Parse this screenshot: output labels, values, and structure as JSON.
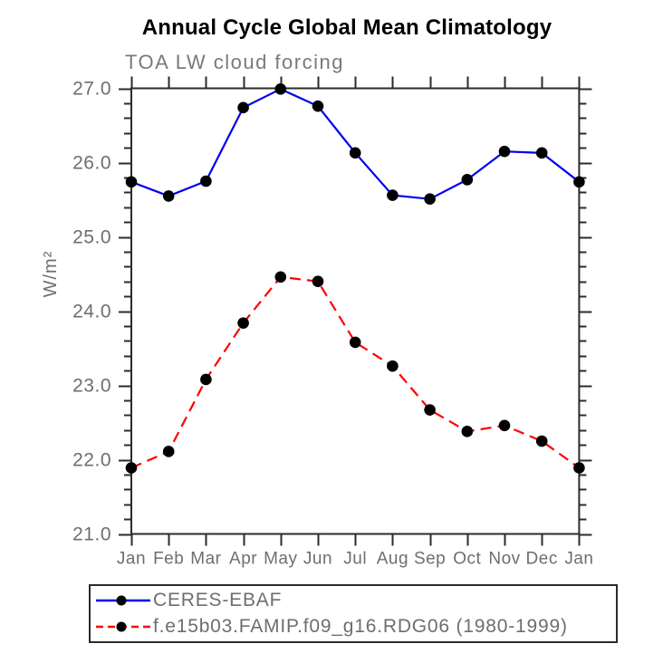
{
  "chart_data": {
    "type": "line",
    "title": "Annual Cycle Global Mean Climatology",
    "subtitle": "TOA LW cloud forcing",
    "ylabel": "W/m²",
    "xlabel": "",
    "categories": [
      "Jan",
      "Feb",
      "Mar",
      "Apr",
      "May",
      "Jun",
      "Jul",
      "Aug",
      "Sep",
      "Oct",
      "Nov",
      "Dec",
      "Jan"
    ],
    "series": [
      {
        "name": "CERES-EBAF",
        "line_style": "solid",
        "color": "#0000ee",
        "marker": "filled-circle",
        "marker_color": "#000000",
        "values": [
          25.74,
          25.55,
          25.75,
          26.74,
          26.99,
          26.76,
          26.13,
          25.56,
          25.51,
          25.77,
          26.15,
          26.13,
          25.74
        ]
      },
      {
        "name": "f.e15b03.FAMIP.f09_g16.RDG06 (1980-1999)",
        "line_style": "dashed",
        "color": "#ff0000",
        "marker": "filled-circle",
        "marker_color": "#000000",
        "values": [
          21.89,
          22.11,
          23.08,
          23.84,
          24.46,
          24.4,
          23.58,
          23.26,
          22.67,
          22.38,
          22.46,
          22.25,
          21.89
        ]
      }
    ],
    "ylim": [
      21.0,
      27.0
    ],
    "ytick_step": 1.0,
    "ytick_labels": [
      "21.0",
      "22.0",
      "23.0",
      "24.0",
      "25.0",
      "26.0",
      "27.0"
    ],
    "yminor_step": 0.2,
    "grid": false,
    "ticks": "all-four-sides-outward",
    "legend_position": "bottom-left-boxed",
    "axis_color": "#2b2b2b",
    "label_color": "#6e6e6e"
  }
}
